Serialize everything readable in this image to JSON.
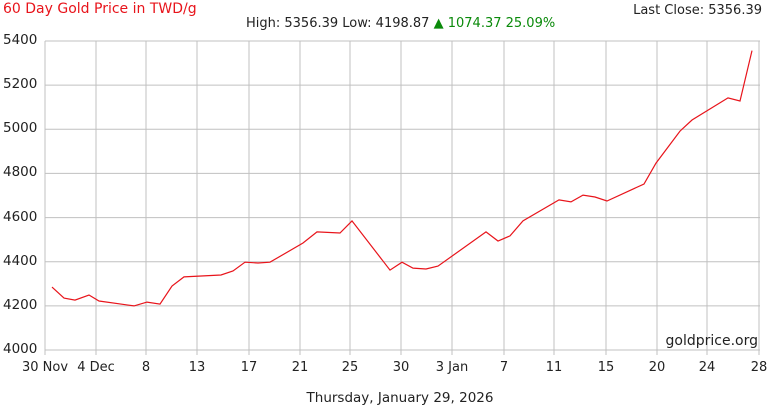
{
  "header": {
    "title": "60 Day Gold Price in TWD/g",
    "last_close_label": "Last Close: 5356.39",
    "high_low": "High: 5356.39 Low: 4198.87",
    "change_arrow": "▲",
    "change_text": "1074.37 25.09%"
  },
  "footer": {
    "date": "Thursday, January 29, 2026",
    "watermark": "goldprice.org"
  },
  "colors": {
    "line": "#e8141b",
    "title": "#e8141b",
    "up": "#0a8a0a",
    "grid": "#c0c0c0"
  },
  "chart_data": {
    "type": "line",
    "title": "60 Day Gold Price in TWD/g",
    "xlabel": "",
    "ylabel": "",
    "ylim": [
      4000,
      5400
    ],
    "yticks": [
      4000,
      4200,
      4400,
      4600,
      4800,
      5000,
      5200,
      5400
    ],
    "xticks": [
      "30 Nov",
      "4 Dec",
      "8",
      "13",
      "17",
      "21",
      "25",
      "30",
      "3 Jan",
      "7",
      "11",
      "15",
      "20",
      "24",
      "28"
    ],
    "grid": true,
    "legend": "none",
    "series": [
      {
        "name": "Gold Price TWD/g",
        "color": "#e8141b",
        "x": [
          "1 Dec",
          "2 Dec",
          "3 Dec",
          "4 Dec",
          "5 Dec",
          "8 Dec",
          "9 Dec",
          "10 Dec",
          "11 Dec",
          "12 Dec",
          "15 Dec",
          "16 Dec",
          "17 Dec",
          "18 Dec",
          "19 Dec",
          "22 Dec",
          "23 Dec",
          "24 Dec",
          "26 Dec",
          "29 Dec",
          "30 Dec",
          "31 Dec",
          "1 Jan",
          "2 Jan",
          "5 Jan",
          "6 Jan",
          "7 Jan",
          "8 Jan",
          "11 Jan",
          "12 Jan",
          "13 Jan",
          "14 Jan",
          "15 Jan",
          "18 Jan",
          "19 Jan",
          "21 Jan",
          "22 Jan",
          "25 Jan",
          "26 Jan",
          "27 Jan"
        ],
        "values": [
          4285,
          4235,
          4226,
          4249,
          4222,
          4200,
          4217,
          4208,
          4290,
          4331,
          4340,
          4358,
          4398,
          4394,
          4398,
          4485,
          4535,
          4530,
          4585,
          4362,
          4398,
          4371,
          4367,
          4380,
          4535,
          4494,
          4517,
          4585,
          4680,
          4671,
          4702,
          4693,
          4675,
          4752,
          4847,
          4992,
          5042,
          5142,
          5128,
          5356.39
        ]
      }
    ],
    "summary": {
      "high": 5356.39,
      "low": 4198.87,
      "change": 1074.37,
      "change_pct": 25.09,
      "last_close": 5356.39
    }
  }
}
